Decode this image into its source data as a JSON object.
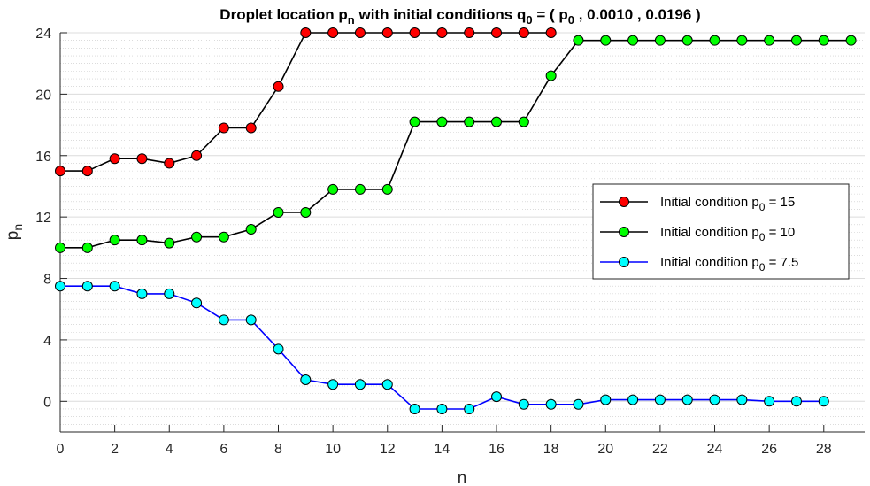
{
  "chart_data": {
    "type": "line",
    "title": {
      "prefix": "Droplet location p",
      "prefix_sub": "n",
      "middle": " with initial conditions q",
      "middle_sub": "0",
      "suffix_a": " = ( p",
      "suffix_sub": "0",
      "suffix_b": " , 0.0010 , 0.0196 )"
    },
    "xlabel": "n",
    "ylabel": {
      "main": "p",
      "sub": "n"
    },
    "xlim": [
      0,
      29.5
    ],
    "ylim": [
      -2,
      24
    ],
    "xticks": [
      0,
      2,
      4,
      6,
      8,
      10,
      12,
      14,
      16,
      18,
      20,
      22,
      24,
      26,
      28
    ],
    "yticks": [
      0,
      4,
      8,
      12,
      16,
      20,
      24
    ],
    "grid": "y-major-and-minor-dotted",
    "legend_position": "right",
    "series": [
      {
        "name": {
          "main": "Initial condition p",
          "sub": "0",
          "rest": " = 15"
        },
        "line_color": "#000000",
        "marker_color": "#ff0000",
        "x": [
          0,
          1,
          2,
          3,
          4,
          5,
          6,
          7,
          8,
          9,
          10,
          11,
          12,
          13,
          14,
          15,
          16,
          17,
          18
        ],
        "y": [
          15.0,
          15.0,
          15.8,
          15.8,
          15.5,
          16.0,
          17.8,
          17.8,
          20.5,
          24.0,
          24.0,
          24.0,
          24.0,
          24.0,
          24.0,
          24.0,
          24.0,
          24.0,
          24.0
        ]
      },
      {
        "name": {
          "main": "Initial condition p",
          "sub": "0",
          "rest": " = 10"
        },
        "line_color": "#000000",
        "marker_color": "#00ff00",
        "x": [
          0,
          1,
          2,
          3,
          4,
          5,
          6,
          7,
          8,
          9,
          10,
          11,
          12,
          13,
          14,
          15,
          16,
          17,
          18,
          19,
          20,
          21,
          22,
          23,
          24,
          25,
          26,
          27,
          28,
          29
        ],
        "y": [
          10.0,
          10.0,
          10.5,
          10.5,
          10.3,
          10.7,
          10.7,
          11.2,
          12.3,
          12.3,
          13.8,
          13.8,
          13.8,
          18.2,
          18.2,
          18.2,
          18.2,
          18.2,
          21.2,
          23.5,
          23.5,
          23.5,
          23.5,
          23.5,
          23.5,
          23.5,
          23.5,
          23.5,
          23.5,
          23.5
        ]
      },
      {
        "name": {
          "main": "Initial condition p",
          "sub": "0",
          "rest": " = 7.5"
        },
        "line_color": "#0000ff",
        "marker_color": "#00ffff",
        "x": [
          0,
          1,
          2,
          3,
          4,
          5,
          6,
          7,
          8,
          9,
          10,
          11,
          12,
          13,
          14,
          15,
          16,
          17,
          18,
          19,
          20,
          21,
          22,
          23,
          24,
          25,
          26,
          27,
          28
        ],
        "y": [
          7.5,
          7.5,
          7.5,
          7.0,
          7.0,
          6.4,
          5.3,
          5.3,
          3.4,
          1.4,
          1.1,
          1.1,
          1.1,
          -0.5,
          -0.5,
          -0.5,
          0.3,
          -0.2,
          -0.2,
          -0.2,
          0.1,
          0.1,
          0.1,
          0.1,
          0.1,
          0.1,
          0.0,
          0.0,
          0.0
        ]
      }
    ]
  }
}
